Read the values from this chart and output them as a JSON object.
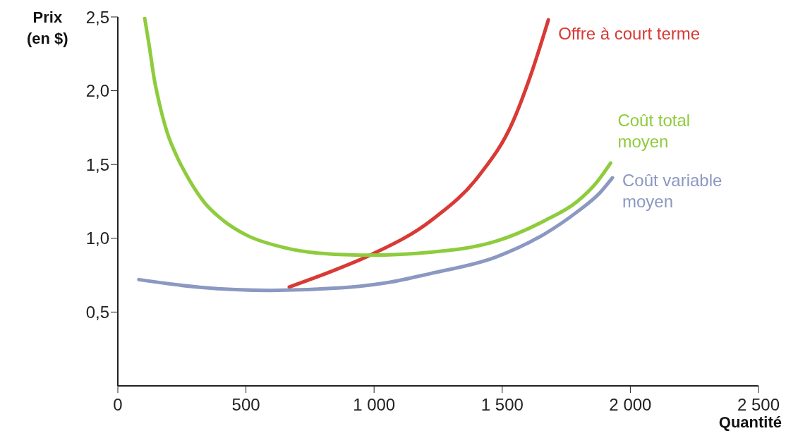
{
  "chart_data": {
    "type": "line",
    "xlabel": "Quantité",
    "ylabel": "Prix\n(en $)",
    "xlim": [
      0,
      2500
    ],
    "ylim": [
      0,
      2.5
    ],
    "xticks": [
      0,
      500,
      {
        "value": 1000,
        "label": "1 000"
      },
      {
        "value": 1500,
        "label": "1 500"
      },
      {
        "value": 2000,
        "label": "2 000"
      },
      {
        "value": 2500,
        "label": "2 500"
      }
    ],
    "yticks": [
      {
        "value": 0.5,
        "label": "0,5"
      },
      {
        "value": 1,
        "label": "1,0"
      },
      {
        "value": 1.5,
        "label": "1,5"
      },
      {
        "value": 2,
        "label": "2,0"
      },
      {
        "value": 2.5,
        "label": "2,5"
      }
    ],
    "grid": false,
    "legend": false,
    "line_style": "solid",
    "series": [
      {
        "name": "Offre à court terme",
        "color": "#d83a35",
        "x": [
          669,
          825,
          990,
          1222,
          1412,
          1539,
          1616,
          1680
        ],
        "values": [
          0.67,
          0.77,
          0.89,
          1.12,
          1.43,
          1.78,
          2.13,
          2.48
        ]
      },
      {
        "name": "Coût total moyen",
        "color": "#8ecc3d",
        "x": [
          105,
          123,
          141,
          164,
          192,
          229,
          274,
          339,
          412,
          504,
          642,
          779,
          963,
          1222,
          1476,
          1666,
          1793,
          1869,
          1923
        ],
        "values": [
          2.49,
          2.3,
          2.09,
          1.9,
          1.72,
          1.56,
          1.41,
          1.24,
          1.12,
          1.02,
          0.94,
          0.9,
          0.885,
          0.906,
          0.98,
          1.12,
          1.25,
          1.38,
          1.51
        ]
      },
      {
        "name": "Coût variable moyen",
        "color": "#8b98c2",
        "x": [
          82,
          320,
          596,
          871,
          1054,
          1222,
          1476,
          1666,
          1793,
          1882,
          1930
        ],
        "values": [
          0.72,
          0.668,
          0.647,
          0.664,
          0.7,
          0.762,
          0.873,
          1.03,
          1.18,
          1.31,
          1.41
        ]
      }
    ]
  }
}
